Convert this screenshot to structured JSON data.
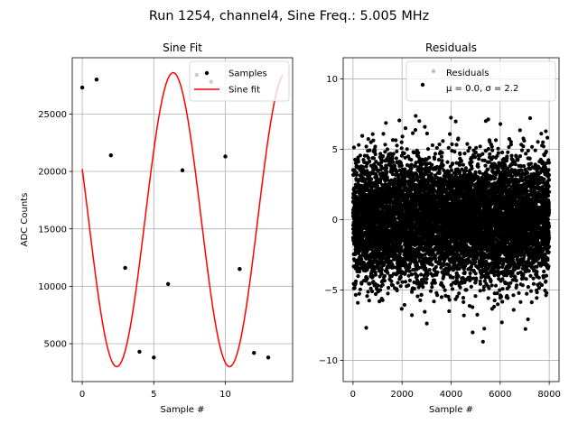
{
  "suptitle": "Run 1254, channel4, Sine Freq.: 5.005 MHz",
  "chart_data": [
    {
      "type": "line",
      "title": "Sine Fit",
      "xlabel": "Sample #",
      "ylabel": "ADC Counts",
      "xlim": [
        -0.7,
        14.7
      ],
      "ylim": [
        1700,
        29900
      ],
      "xticks": [
        0,
        5,
        10
      ],
      "yticks": [
        5000,
        10000,
        15000,
        20000,
        25000
      ],
      "grid": true,
      "legend": {
        "placement": "top-right",
        "entries": [
          "Samples",
          "Sine fit"
        ]
      },
      "fit": {
        "offset": 15800,
        "amplitude": 12800,
        "cycles_per_sample": 0.1269,
        "phase": 2.79,
        "x_range": [
          0,
          14
        ]
      },
      "series": [
        {
          "name": "Samples",
          "kind": "scatter",
          "color": "#000000",
          "x": [
            0,
            1,
            2,
            3,
            4,
            5,
            6,
            7,
            8,
            9,
            10,
            11,
            12,
            13
          ],
          "y": [
            27300,
            28000,
            21400,
            11600,
            4300,
            3800,
            10200,
            20100,
            28400,
            27800,
            21300,
            11500,
            4200,
            3800
          ]
        },
        {
          "name": "Sine fit",
          "kind": "line",
          "color": "#ff0000"
        }
      ]
    },
    {
      "type": "scatter",
      "title": "Residuals",
      "xlabel": "Sample #",
      "ylabel": "",
      "xlim": [
        -400,
        8400
      ],
      "ylim": [
        -11.5,
        11.5
      ],
      "xticks": [
        0,
        2000,
        4000,
        6000,
        8000
      ],
      "yticks": [
        -10,
        -5,
        0,
        5,
        10
      ],
      "grid": true,
      "legend": {
        "placement": "top-right",
        "entries": [
          "Residuals",
          "μ = 0.0, σ = 2.2"
        ]
      },
      "series": [
        {
          "name": "Residuals",
          "color": "#000000",
          "n_points": 8000,
          "mean": 0.0,
          "std": 2.2
        }
      ]
    }
  ]
}
